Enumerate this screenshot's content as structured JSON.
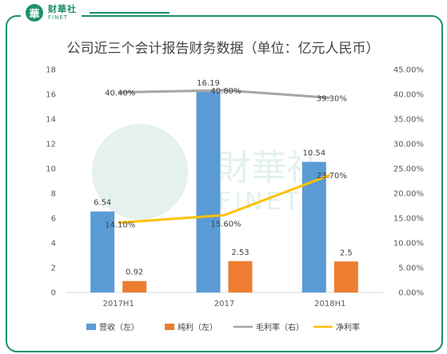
{
  "brand": {
    "name_cn": "财華社",
    "name_en": "FINET",
    "seal": "華"
  },
  "watermark": {
    "cn": "財華社",
    "en": "FINET"
  },
  "chart_data": {
    "type": "bar",
    "title": "公司近三个会计报告财务数据（单位：亿元人民币）",
    "categories": [
      "2017H1",
      "2017",
      "2018H1"
    ],
    "series": [
      {
        "name": "营收（左）",
        "kind": "bar",
        "axis": "left",
        "color": "#5b9bd5",
        "values": [
          6.54,
          16.19,
          10.54
        ],
        "labels": [
          "6.54",
          "16.19",
          "10.54"
        ]
      },
      {
        "name": "纯利（左）",
        "kind": "bar",
        "axis": "left",
        "color": "#ed7d31",
        "values": [
          0.92,
          2.53,
          2.5
        ],
        "labels": [
          "0.92",
          "2.53",
          "2.5"
        ]
      },
      {
        "name": "毛利率（右）",
        "kind": "line",
        "axis": "right",
        "color": "#a5a5a5",
        "values": [
          40.4,
          40.8,
          39.3
        ],
        "labels": [
          "40.40%",
          "40.80%",
          "39.30%"
        ]
      },
      {
        "name": "净利率",
        "kind": "line",
        "axis": "right",
        "color": "#ffc000",
        "values": [
          14.1,
          15.6,
          23.7
        ],
        "labels": [
          "14.10%",
          "15.60%",
          "23.70%"
        ]
      }
    ],
    "left_axis": {
      "ylim": [
        0,
        18
      ],
      "ticks": [
        "0",
        "2",
        "4",
        "6",
        "8",
        "10",
        "12",
        "14",
        "16",
        "18"
      ]
    },
    "right_axis": {
      "ylim": [
        0,
        45
      ],
      "ticks": [
        "0.00%",
        "5.00%",
        "10.00%",
        "15.00%",
        "20.00%",
        "25.00%",
        "30.00%",
        "35.00%",
        "40.00%",
        "45.00%"
      ]
    },
    "grid": false,
    "legend": "bottom"
  }
}
